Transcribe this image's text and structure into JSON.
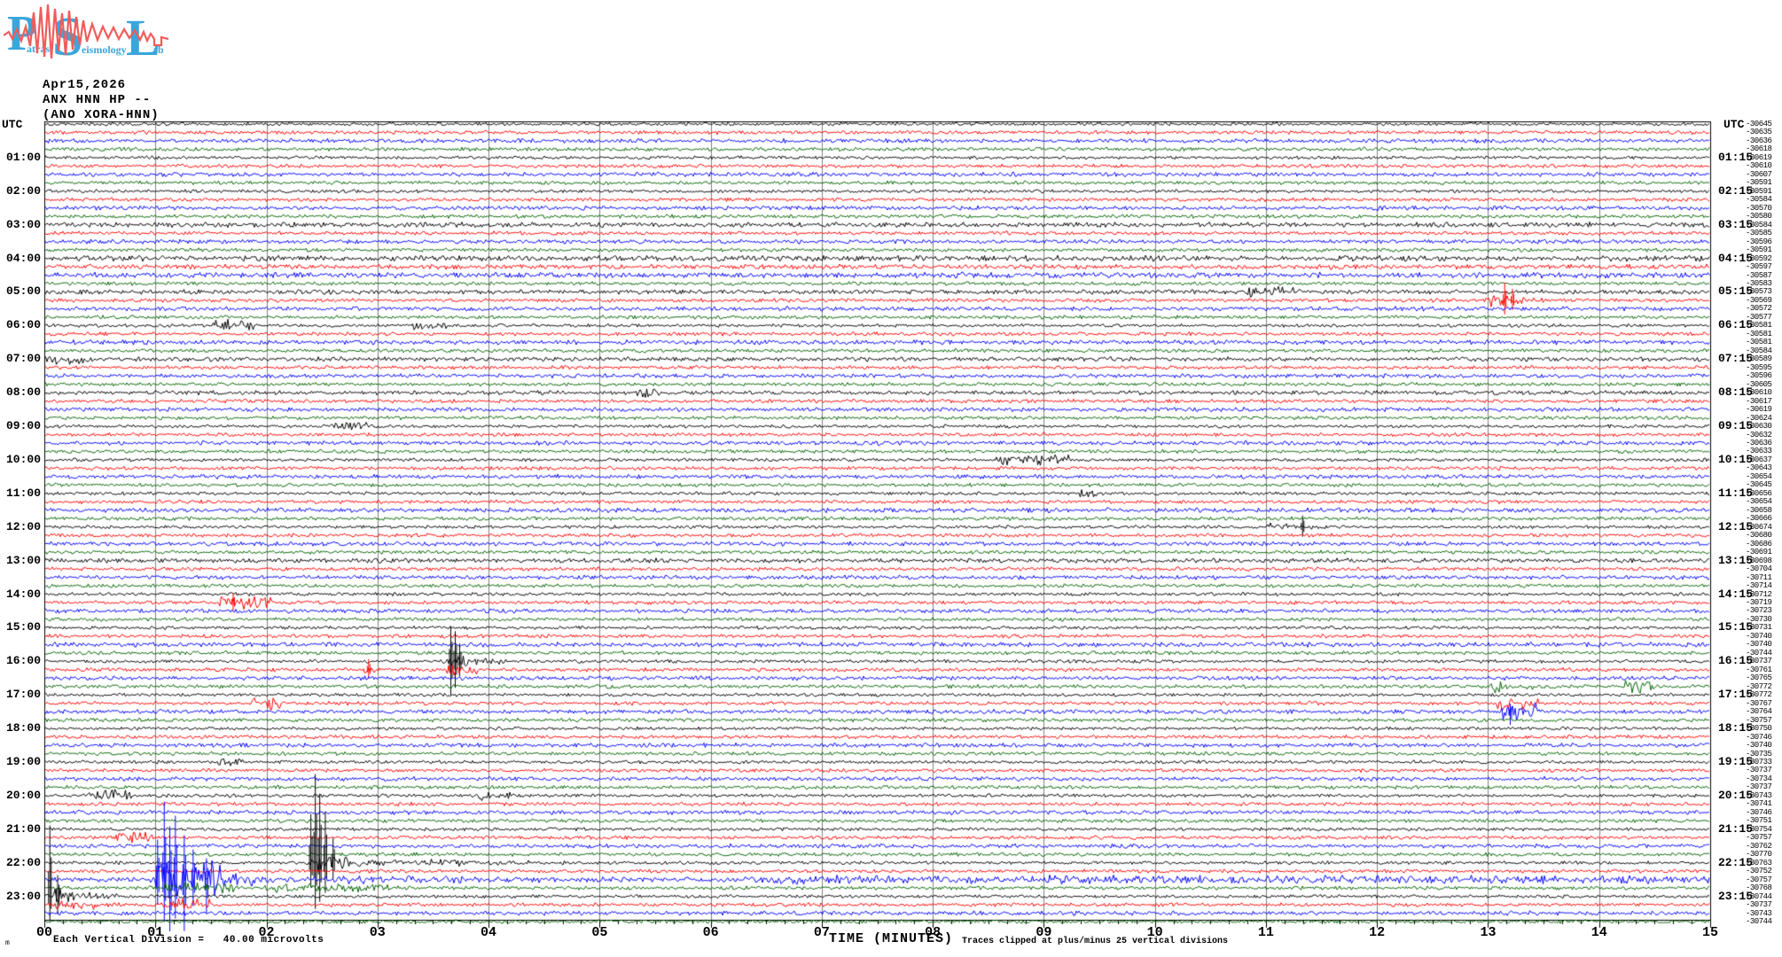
{
  "logo": {
    "letters": [
      "P",
      "S",
      "L"
    ],
    "word_fragments": [
      "atras",
      "eismology",
      "ab"
    ],
    "blue": "#3aa6db",
    "red": "#f15b5b"
  },
  "header": {
    "date": "Apr15,2026",
    "station": "ANX HNN HP --",
    "station_alt": "(ANO XORA-HNN)"
  },
  "plot": {
    "utc_left": "UTC",
    "utc_right": "UTC",
    "left_hour_labels": [
      "01:00",
      "02:00",
      "03:00",
      "04:00",
      "05:00",
      "06:00",
      "07:00",
      "08:00",
      "09:00",
      "10:00",
      "11:00",
      "12:00",
      "13:00",
      "14:00",
      "15:00",
      "16:00",
      "17:00",
      "18:00",
      "19:00",
      "20:00",
      "21:00",
      "22:00",
      "23:00"
    ],
    "right_quarter_labels": [
      "01:15",
      "02:15",
      "03:15",
      "04:15",
      "05:15",
      "06:15",
      "07:15",
      "08:15",
      "09:15",
      "10:15",
      "11:15",
      "12:15",
      "13:15",
      "14:15",
      "15:15",
      "16:15",
      "17:15",
      "18:15",
      "19:15",
      "20:15",
      "21:15",
      "22:15",
      "23:15"
    ],
    "right_trace_values": [
      -30645,
      -30635,
      -30636,
      -30618,
      -30619,
      -30610,
      -30607,
      -30591,
      -30591,
      -30584,
      -30570,
      -30580,
      -30584,
      -30585,
      -30596,
      -30591,
      -30592,
      -30597,
      -30587,
      -30583,
      -30573,
      -30569,
      -30572,
      -30577,
      -30581,
      -30581,
      -30581,
      -30584,
      -30589,
      -30595,
      -30596,
      -30605,
      -30610,
      -30617,
      -30619,
      -30624,
      -30630,
      -30632,
      -30636,
      -30633,
      -30637,
      -30643,
      -30654,
      -30645,
      -30656,
      -30654,
      -30658,
      -30666,
      -30674,
      -30680,
      -30686,
      -30691,
      -30698,
      -30704,
      -30711,
      -30714,
      -30712,
      -30719,
      -30723,
      -30730,
      -30731,
      -30740,
      -30740,
      -30744,
      -30737,
      -30761,
      -30765,
      -30772,
      -30772,
      -30767,
      -30764,
      -30757,
      -30750,
      -30746,
      -30740,
      -30735,
      -30733,
      -30737,
      -30734,
      -30737,
      -30743,
      -30741,
      -30746,
      -30751,
      -30754,
      -30757,
      -30762,
      -30770,
      -30763,
      -30752,
      -30757,
      -30768,
      -30744,
      -30737,
      -30743,
      -30744
    ],
    "minute_labels": [
      "00",
      "01",
      "02",
      "03",
      "04",
      "05",
      "06",
      "07",
      "08",
      "09",
      "10",
      "11",
      "12",
      "13",
      "14",
      "15"
    ],
    "xaxis_title": "TIME (MINUTES)",
    "footnote_scale": "Each Vertical Division =   40.00 microvolts",
    "footnote_prefix": "m",
    "footnote_clip": "Traces clipped at plus/minus 25 vertical divisions",
    "colors": {
      "trace_cycle": [
        "#000000",
        "#ff0000",
        "#0000ff",
        "#006400"
      ],
      "grid": "#808080",
      "frame": "#000000"
    }
  },
  "chart_data": {
    "type": "line",
    "subtype": "helicorder-seismogram",
    "date": "Apr15,2026",
    "station": "ANX HNN HP --",
    "xlabel": "TIME (MINUTES)",
    "x_range": [
      0,
      15
    ],
    "minutes_per_line": 15,
    "trace_count": 96,
    "traces_per_hour": 4,
    "first_trace_time": "00:00",
    "last_trace_time": "23:45",
    "scale_microvolts_per_division": 40.0,
    "clip_divisions": 25,
    "base_noise_amp": {
      "black": 1.9,
      "red": 2.1,
      "blue": 2.4,
      "green": 2.1
    },
    "noisy_traces": {
      "13": 2.8,
      "17": 3.2,
      "18": 2.7,
      "19": 3.2,
      "21": 2.6,
      "27": 2.6,
      "29": 2.5,
      "33": 2.4,
      "47": 2.6,
      "53": 2.6,
      "63": 2.6
    },
    "events": [
      {
        "trace": 21,
        "start": 10.8,
        "end": 11.25,
        "amp": 4
      },
      {
        "trace": 22,
        "start": 12.95,
        "end": 13.5,
        "amp": 9,
        "decay": true,
        "spikes": [
          {
            "t": 13.15,
            "up": 20,
            "down": 16
          },
          {
            "t": 13.22,
            "up": 13,
            "down": 11
          }
        ]
      },
      {
        "trace": 25,
        "start": 1.5,
        "end": 1.9,
        "amp": 5
      },
      {
        "trace": 25,
        "start": 3.3,
        "end": 3.62,
        "amp": 3.5
      },
      {
        "trace": 29,
        "start": 0.02,
        "end": 0.4,
        "amp": 4
      },
      {
        "trace": 33,
        "start": 5.3,
        "end": 5.55,
        "amp": 3
      },
      {
        "trace": 37,
        "start": 2.55,
        "end": 2.9,
        "amp": 4
      },
      {
        "trace": 41,
        "start": 8.55,
        "end": 9.25,
        "amp": 4.5
      },
      {
        "trace": 45,
        "start": 9.3,
        "end": 9.55,
        "amp": 3.5
      },
      {
        "trace": 49,
        "start": 11.0,
        "end": 11.5,
        "amp": 7,
        "decay": true,
        "spikes": [
          {
            "t": 11.33,
            "up": 13,
            "down": 11
          }
        ]
      },
      {
        "trace": 58,
        "start": 1.55,
        "end": 2.05,
        "amp": 6,
        "spikes": [
          {
            "t": 1.7,
            "up": 11,
            "down": 9
          }
        ]
      },
      {
        "trace": 65,
        "start": 3.58,
        "end": 4.2,
        "amp": 9,
        "decay": true,
        "spikes": [
          {
            "t": 3.66,
            "up": 40,
            "down": 38
          },
          {
            "t": 3.7,
            "up": 34,
            "down": 30
          },
          {
            "t": 3.74,
            "up": 20,
            "down": 17
          }
        ]
      },
      {
        "trace": 66,
        "start": 3.6,
        "end": 3.9,
        "amp": 6
      },
      {
        "trace": 66,
        "start": 2.88,
        "end": 2.98,
        "amp": 4,
        "spikes": [
          {
            "t": 2.92,
            "up": 12,
            "down": 10
          }
        ]
      },
      {
        "trace": 68,
        "start": 13.0,
        "end": 13.42,
        "amp": 10,
        "decay": true
      },
      {
        "trace": 68,
        "start": 14.2,
        "end": 14.5,
        "amp": 6
      },
      {
        "trace": 70,
        "start": 1.85,
        "end": 2.12,
        "amp": 7
      },
      {
        "trace": 70,
        "start": 13.05,
        "end": 13.45,
        "amp": 6
      },
      {
        "trace": 71,
        "start": 13.1,
        "end": 13.45,
        "amp": 9,
        "spikes": [
          {
            "t": 13.2,
            "up": 9,
            "down": 15
          }
        ]
      },
      {
        "trace": 77,
        "start": 1.55,
        "end": 1.82,
        "amp": 4
      },
      {
        "trace": 81,
        "start": 0.38,
        "end": 0.78,
        "amp": 7
      },
      {
        "trace": 81,
        "start": 3.9,
        "end": 4.2,
        "amp": 4.5
      },
      {
        "trace": 86,
        "start": 0.62,
        "end": 0.98,
        "amp": 6
      },
      {
        "trace": 89,
        "start": 2.35,
        "end": 3.3,
        "amp": 11,
        "decay": true,
        "spikes": [
          {
            "t": 2.4,
            "up": 55,
            "down": 28
          },
          {
            "t": 2.44,
            "up": 100,
            "down": 52
          },
          {
            "t": 2.48,
            "up": 78,
            "down": 44
          },
          {
            "t": 2.53,
            "up": 58,
            "down": 34
          },
          {
            "t": 2.6,
            "up": 28,
            "down": 18
          }
        ]
      },
      {
        "trace": 89,
        "start": 3.3,
        "end": 4.7,
        "amp": 4,
        "decay": true
      },
      {
        "trace": 91,
        "start": 0.95,
        "end": 1.62,
        "amp": 24,
        "spikes": [
          {
            "t": 1.02,
            "up": 45,
            "down": 28
          },
          {
            "t": 1.08,
            "up": 88,
            "down": 48
          },
          {
            "t": 1.13,
            "up": 60,
            "down": 70
          },
          {
            "t": 1.18,
            "up": 72,
            "down": 44
          },
          {
            "t": 1.26,
            "up": 50,
            "down": 58
          },
          {
            "t": 1.34,
            "up": 34,
            "down": 30
          },
          {
            "t": 1.46,
            "up": 24,
            "down": 38
          }
        ]
      },
      {
        "trace": 91,
        "start": 1.62,
        "end": 2.45,
        "amp": 9,
        "decay": true
      },
      {
        "trace": 91,
        "start": 2.45,
        "end": 5.6,
        "amp": 4,
        "decay": true
      },
      {
        "trace": 91,
        "start": 5.6,
        "end": 15,
        "amp": 2.6
      },
      {
        "trace": 92,
        "start": 1.0,
        "end": 1.72,
        "amp": 4.5
      },
      {
        "trace": 92,
        "start": 1.9,
        "end": 3.2,
        "amp": 3
      },
      {
        "trace": 93,
        "start": 0.0,
        "end": 0.75,
        "amp": 11,
        "decay": true,
        "spikes": [
          {
            "t": 0.05,
            "up": 80,
            "down": 28
          },
          {
            "t": 0.12,
            "up": 24,
            "down": 20
          }
        ]
      },
      {
        "trace": 94,
        "start": 0.05,
        "end": 0.5,
        "amp": 4
      },
      {
        "trace": 94,
        "start": 1.05,
        "end": 1.5,
        "amp": 5
      }
    ]
  }
}
